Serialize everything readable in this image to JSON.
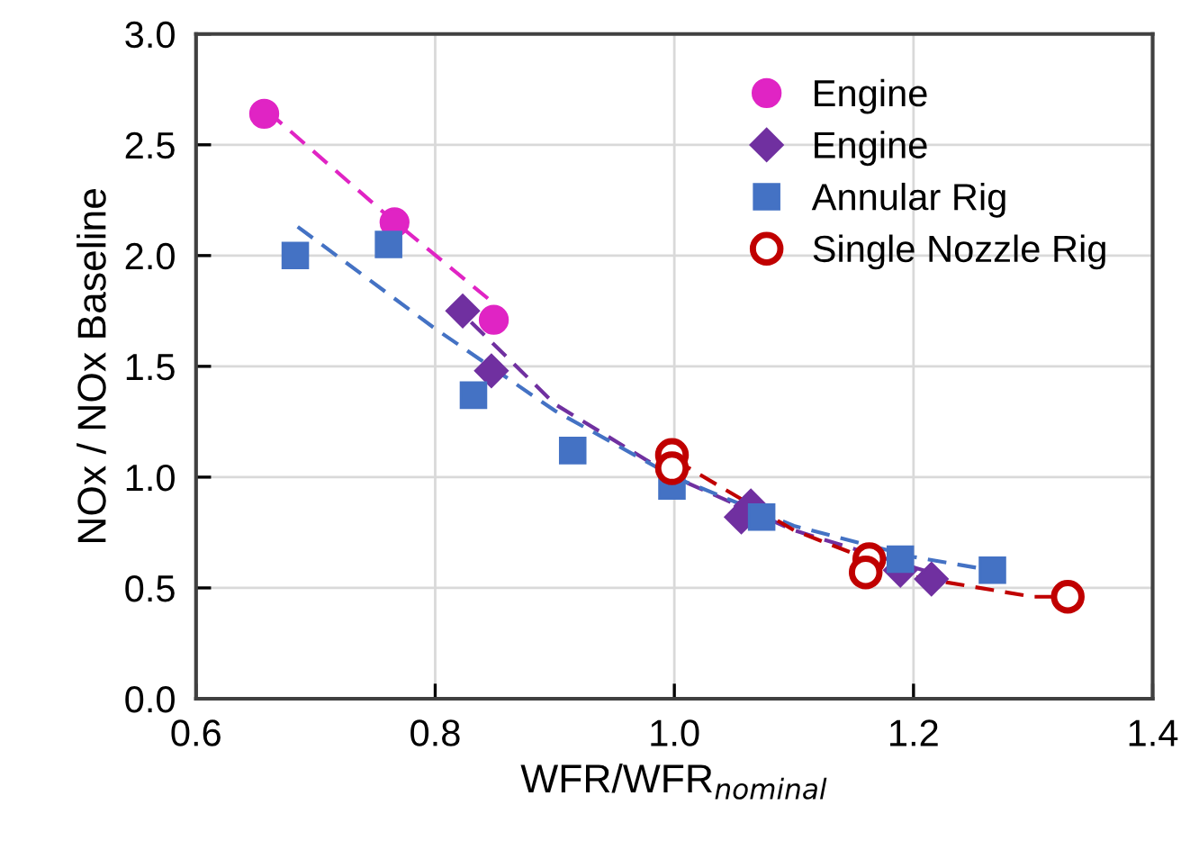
{
  "chart_data": {
    "type": "scatter",
    "xlabel": "WFR/WFR$_{nominal}$",
    "ylabel": "NOx / NOx Baseline",
    "xlim": [
      0.6,
      1.4
    ],
    "xticks": [
      {
        "value": 0.6,
        "label": "0.6"
      },
      {
        "value": 0.8,
        "label": "0.8"
      },
      {
        "value": 1.0,
        "label": "1.0"
      },
      {
        "value": 1.2,
        "label": "1.2"
      },
      {
        "value": 1.4,
        "label": "1.4"
      }
    ],
    "ylim": [
      0,
      3
    ],
    "yticks": [
      {
        "value": 0,
        "label": "0.0"
      },
      {
        "value": 0.5,
        "label": "0.5"
      },
      {
        "value": 1.0,
        "label": "1.0"
      },
      {
        "value": 1.5,
        "label": "1.5"
      },
      {
        "value": 2.0,
        "label": "2.0"
      },
      {
        "value": 2.5,
        "label": "2.5"
      },
      {
        "value": 3.0,
        "label": "3.0"
      }
    ],
    "grid": true,
    "legend": "top right",
    "series": [
      {
        "type": "line",
        "color": "#e024c4",
        "line_style": "dashed",
        "marker": "none",
        "x": [
          0.66,
          0.76,
          0.85
        ],
        "values": [
          2.65,
          2.18,
          1.78
        ]
      },
      {
        "type": "line",
        "color": "#7030a0",
        "line_style": "dashed",
        "marker": "none",
        "x": [
          0.83,
          0.9,
          1.0,
          1.1,
          1.22
        ],
        "values": [
          1.7,
          1.33,
          1.0,
          0.76,
          0.56
        ]
      },
      {
        "type": "line",
        "color": "#4472c4",
        "line_style": "dashed",
        "marker": "none",
        "x": [
          0.685,
          0.8,
          0.9,
          1.0,
          1.1,
          1.2,
          1.265
        ],
        "values": [
          2.13,
          1.67,
          1.3,
          1.0,
          0.78,
          0.64,
          0.58
        ]
      },
      {
        "type": "line",
        "color": "#c00000",
        "line_style": "dashed",
        "marker": "none",
        "x": [
          1.0,
          1.1,
          1.2,
          1.3,
          1.33
        ],
        "values": [
          1.08,
          0.76,
          0.55,
          0.46,
          0.46
        ]
      },
      {
        "name": "Engine",
        "color": "#e024c4",
        "marker": "circle",
        "x": [
          0.657,
          0.766,
          0.849
        ],
        "values": [
          2.64,
          2.15,
          1.71
        ]
      },
      {
        "name": "Engine",
        "color": "#7030a0",
        "marker": "diamond",
        "x": [
          0.823,
          0.847,
          1.056,
          1.064,
          1.189,
          1.215
        ],
        "values": [
          1.75,
          1.48,
          0.82,
          0.87,
          0.58,
          0.54
        ]
      },
      {
        "name": "Annular Rig",
        "color": "#4472c4",
        "marker": "square",
        "x": [
          0.683,
          0.761,
          0.832,
          0.915,
          0.998,
          1.073,
          1.189,
          1.266
        ],
        "values": [
          2.0,
          2.05,
          1.37,
          1.12,
          0.96,
          0.82,
          0.63,
          0.58
        ]
      },
      {
        "name": "Single Nozzle Rig",
        "color": "#c00000",
        "marker": "open circle",
        "x": [
          0.998,
          0.998,
          1.163,
          1.16,
          1.329
        ],
        "values": [
          1.1,
          1.04,
          0.63,
          0.57,
          0.46
        ]
      }
    ]
  }
}
